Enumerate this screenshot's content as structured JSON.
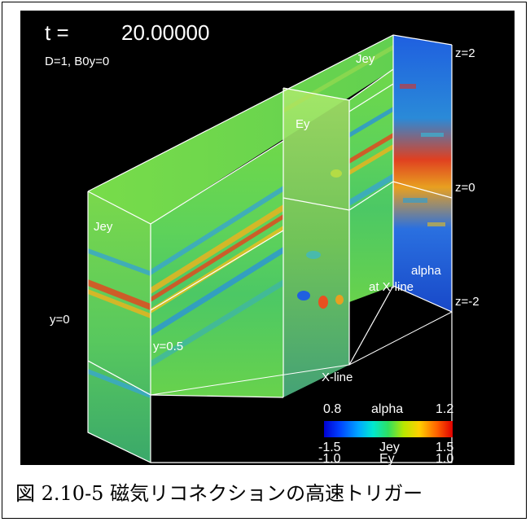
{
  "figure": {
    "time_label": "t =",
    "time_value": "20.00000",
    "params": "D=1, B0y=0",
    "labels": {
      "jey_top": "Jey",
      "jey_left": "Jey",
      "ey": "Ey",
      "z_top": "z=2",
      "z_mid": "z=0",
      "z_bot": "z=-2",
      "alpha": "alpha",
      "at_xline": "at X-line",
      "y0": "y=0",
      "y05": "y=0.5",
      "xline": "X-line"
    },
    "colorbar": {
      "alpha_min": "0.8",
      "alpha_name": "alpha",
      "alpha_max": "1.2",
      "jey_min": "-1.5",
      "jey_name": "Jey",
      "jey_max": "1.5",
      "ey_min": "-1.0",
      "ey_name": "Ey",
      "ey_max": "1.0"
    }
  },
  "caption": "図 2.10-5 磁気リコネクションの高速トリガー"
}
